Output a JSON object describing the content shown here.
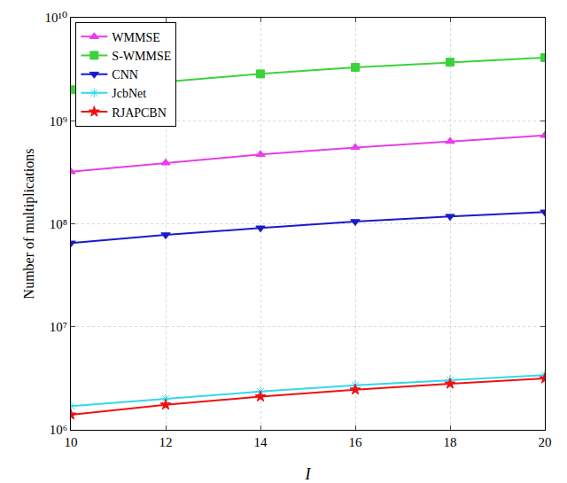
{
  "chart_data": {
    "type": "line",
    "x_label": "I",
    "y_label": "Number of multiplications",
    "x": [
      10,
      12,
      14,
      16,
      18,
      20
    ],
    "series": [
      {
        "name": "WMMSE",
        "color": "#e83ee8",
        "marker": "triangle-up",
        "values": [
          320000000,
          390000000,
          470000000,
          550000000,
          630000000,
          720000000
        ]
      },
      {
        "name": "S-WMMSE",
        "color": "#3cd23c",
        "marker": "square",
        "values": [
          2000000000,
          2400000000,
          2850000000,
          3300000000,
          3700000000,
          4100000000
        ]
      },
      {
        "name": "CNN",
        "color": "#1a1acc",
        "marker": "triangle-down",
        "values": [
          65000000,
          78000000,
          91000000,
          105000000,
          118000000,
          130000000
        ]
      },
      {
        "name": "JcbNet",
        "color": "#33d8ee",
        "marker": "asterisk-open",
        "values": [
          1700000,
          2000000,
          2350000,
          2700000,
          3050000,
          3400000
        ]
      },
      {
        "name": "RJAPCBN",
        "color": "#ee1111",
        "marker": "star",
        "values": [
          1400000,
          1750000,
          2100000,
          2450000,
          2800000,
          3150000
        ]
      }
    ],
    "xlim": [
      10,
      20
    ],
    "xticks": [
      10,
      12,
      14,
      16,
      18,
      20
    ],
    "ylim": [
      1000000,
      10000000000
    ],
    "yticks": [
      {
        "value": 1000000,
        "label": "10⁶"
      },
      {
        "value": 10000000,
        "label": "10⁷"
      },
      {
        "value": 100000000,
        "label": "10⁸"
      },
      {
        "value": 1000000000,
        "label": "10⁹"
      },
      {
        "value": 10000000000,
        "label": "10¹⁰"
      }
    ],
    "log": "y",
    "grid": true,
    "legend": "top-left"
  }
}
